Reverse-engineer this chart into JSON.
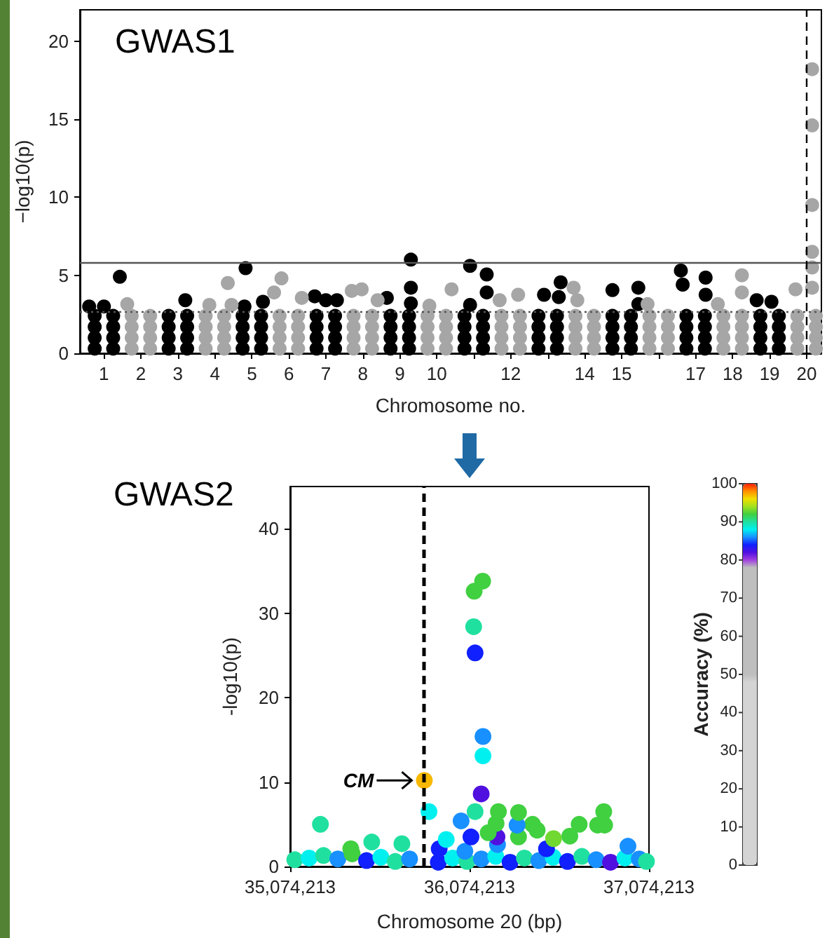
{
  "chart_data": [
    {
      "type": "scatter",
      "title": "GWAS1",
      "xlabel": "Chromosome no.",
      "ylabel": "−log10(p)",
      "marker": "circle",
      "xlim": [
        0.35,
        20.4
      ],
      "xticks": [
        1,
        2,
        3,
        4,
        5,
        6,
        7,
        8,
        9,
        10,
        {
          "value": 11,
          "label": null
        },
        12,
        {
          "value": 13,
          "label": null
        },
        14,
        15,
        {
          "value": 16,
          "label": null
        },
        17,
        18,
        19,
        20
      ],
      "ylim": [
        0,
        22
      ],
      "yticks": [
        0,
        5,
        10,
        15,
        20
      ],
      "ref_lines": [
        {
          "axis": "y",
          "value": 5.8,
          "color": "#555555",
          "line_style": "solid"
        },
        {
          "axis": "y",
          "value": 2.7,
          "color": "#555555",
          "line_style": "dotted"
        },
        {
          "axis": "x",
          "value": 20,
          "color": "#000000",
          "line_style": "dashed"
        }
      ],
      "series": [
        {
          "color": "#000000",
          "x": [
            0.75,
            0.75,
            0.75,
            0.75,
            1.25,
            1.25,
            1.25,
            1.25,
            2.75,
            2.75,
            2.75,
            2.75,
            3.25,
            3.25,
            3.25,
            3.25,
            4.75,
            4.75,
            4.75,
            4.75,
            5.25,
            5.25,
            5.25,
            5.25,
            6.75,
            6.75,
            6.75,
            6.75,
            7.25,
            7.25,
            7.25,
            7.25,
            8.75,
            8.75,
            8.75,
            8.75,
            9.25,
            9.25,
            9.25,
            9.25,
            10.75,
            10.75,
            10.75,
            10.75,
            11.25,
            11.25,
            11.25,
            11.25,
            12.75,
            12.75,
            12.75,
            12.75,
            13.25,
            13.25,
            13.25,
            13.25,
            14.75,
            14.75,
            14.75,
            14.75,
            15.25,
            15.25,
            15.25,
            15.25,
            16.75,
            16.75,
            16.75,
            16.75,
            17.25,
            17.25,
            17.25,
            17.25,
            18.75,
            18.75,
            18.75,
            18.75,
            19.25,
            19.25,
            19.25,
            19.25,
            1.43,
            1.0,
            0.6,
            3.2,
            4.83,
            4.8,
            5.3,
            6.7,
            7.0,
            7.3,
            8.65,
            9.3,
            9.3,
            9.3,
            10.9,
            11.35,
            11.35,
            10.9,
            13.35,
            12.9,
            13.3,
            14.75,
            15.45,
            15.45,
            16.6,
            17.27,
            17.27,
            16.65,
            18.65,
            19.05
          ],
          "values": [
            0.3,
            1,
            1.7,
            2.4,
            0.3,
            1,
            1.7,
            2.4,
            0.3,
            1,
            1.7,
            2.4,
            0.3,
            1,
            1.7,
            2.4,
            0.3,
            1,
            1.7,
            2.4,
            0.3,
            1,
            1.7,
            2.4,
            0.3,
            1,
            1.7,
            2.4,
            0.3,
            1,
            1.7,
            2.4,
            0.3,
            1,
            1.7,
            2.4,
            0.3,
            1,
            1.7,
            2.4,
            0.3,
            1,
            1.7,
            2.4,
            0.3,
            1,
            1.7,
            2.4,
            0.3,
            1,
            1.7,
            2.4,
            0.3,
            1,
            1.7,
            2.4,
            0.3,
            1,
            1.7,
            2.4,
            0.3,
            1,
            1.7,
            2.4,
            0.3,
            1,
            1.7,
            2.4,
            0.3,
            1,
            1.7,
            2.4,
            0.3,
            1,
            1.7,
            2.4,
            0.3,
            1,
            1.7,
            2.4,
            4.9,
            3.0,
            3.0,
            3.4,
            5.45,
            3.0,
            3.3,
            3.65,
            3.4,
            3.4,
            3.55,
            6.0,
            4.2,
            3.2,
            5.6,
            5.05,
            3.9,
            3.1,
            4.55,
            3.75,
            3.6,
            4.05,
            4.2,
            3.15,
            5.3,
            4.85,
            3.75,
            4.4,
            3.4,
            3.3
          ]
        },
        {
          "color": "#a6a6a6",
          "x": [
            1.75,
            1.75,
            1.75,
            1.75,
            2.25,
            2.25,
            2.25,
            2.25,
            3.75,
            3.75,
            3.75,
            3.75,
            4.25,
            4.25,
            4.25,
            4.25,
            5.75,
            5.75,
            5.75,
            5.75,
            6.25,
            6.25,
            6.25,
            6.25,
            7.75,
            7.75,
            7.75,
            7.75,
            8.25,
            8.25,
            8.25,
            8.25,
            9.75,
            9.75,
            9.75,
            9.75,
            10.25,
            10.25,
            10.25,
            10.25,
            11.75,
            11.75,
            11.75,
            11.75,
            12.25,
            12.25,
            12.25,
            12.25,
            13.75,
            13.75,
            13.75,
            13.75,
            14.25,
            14.25,
            14.25,
            14.25,
            15.75,
            15.75,
            15.75,
            15.75,
            16.25,
            16.25,
            16.25,
            16.25,
            17.75,
            17.75,
            17.75,
            17.75,
            18.25,
            18.25,
            18.25,
            18.25,
            19.75,
            19.75,
            19.75,
            19.75,
            20.25,
            20.25,
            20.25,
            20.25,
            1.63,
            3.85,
            4.35,
            4.45,
            5.8,
            5.6,
            6.35,
            7.7,
            7.97,
            8.4,
            10.4,
            9.8,
            12.2,
            11.7,
            13.7,
            13.8,
            15.7,
            18.25,
            18.25,
            17.6,
            19.7,
            20.15,
            20.15,
            20.15,
            20.15,
            20.15,
            20.15
          ],
          "values": [
            0.3,
            1,
            1.7,
            2.4,
            0.3,
            1,
            1.7,
            2.4,
            0.3,
            1,
            1.7,
            2.4,
            0.3,
            1,
            1.7,
            2.4,
            0.3,
            1,
            1.7,
            2.4,
            0.3,
            1,
            1.7,
            2.4,
            0.3,
            1,
            1.7,
            2.4,
            0.3,
            1,
            1.7,
            2.4,
            0.3,
            1,
            1.7,
            2.4,
            0.3,
            1,
            1.7,
            2.4,
            0.3,
            1,
            1.7,
            2.4,
            0.3,
            1,
            1.7,
            2.4,
            0.3,
            1,
            1.7,
            2.4,
            0.3,
            1,
            1.7,
            2.4,
            0.3,
            1,
            1.7,
            2.4,
            0.3,
            1,
            1.7,
            2.4,
            0.3,
            1,
            1.7,
            2.4,
            0.3,
            1,
            1.7,
            2.4,
            0.3,
            1,
            1.7,
            2.4,
            0.3,
            1,
            1.7,
            2.4,
            3.15,
            3.1,
            4.5,
            3.1,
            4.8,
            3.9,
            3.55,
            4.0,
            4.1,
            3.4,
            4.1,
            3.05,
            3.75,
            3.4,
            4.2,
            3.4,
            3.15,
            5.0,
            3.9,
            3.15,
            4.1,
            18.2,
            14.6,
            9.5,
            6.5,
            5.5,
            4.2
          ]
        }
      ]
    },
    {
      "type": "scatter",
      "title": "GWAS2",
      "xlabel": "Chromosome 20 (bp)",
      "ylabel": "-log10(p)",
      "clabel": "Accuracy (%)",
      "marker": "circle",
      "xlim": [
        35074213,
        37074213
      ],
      "xticks": [
        {
          "value": 35074213,
          "label": "35,074,213"
        },
        {
          "value": 36074213,
          "label": "36,074,213"
        },
        {
          "value": 37074213,
          "label": "37,074,213"
        }
      ],
      "ylim": [
        0,
        45
      ],
      "yticks": [
        0,
        10,
        20,
        30,
        40
      ],
      "clim": [
        0,
        100
      ],
      "cticks": [
        0,
        10,
        20,
        30,
        40,
        50,
        60,
        70,
        80,
        90,
        100
      ],
      "ref_lines": [
        {
          "axis": "x",
          "value": 35822000,
          "color": "#000000",
          "line_style": "dashed"
        }
      ],
      "annotations": [
        {
          "text": "CM",
          "x": 35822000,
          "y": 10.2
        }
      ],
      "series": [
        {
          "x": [
            35100000,
            35180000,
            35260000,
            35340000,
            35420000,
            35500000,
            35580000,
            35660000,
            35740000,
            35900000,
            35980000,
            36060000,
            36140000,
            36220000,
            36300000,
            36380000,
            36460000,
            36540000,
            36620000,
            36700000,
            36780000,
            36860000,
            36940000,
            37020000,
            37060000,
            35412000,
            36503000,
            36957000,
            35905000,
            36048000,
            35529000,
            35697000,
            35944000,
            36082000,
            36230000,
            36227000,
            36178000,
            36222000,
            36542000,
            36633000,
            36685000,
            36425000,
            36451000,
            36788000,
            36822000,
            36827000,
            36347000,
            36339000,
            36347000,
            36235000,
            36105000,
            36027000,
            35243000,
            35848000,
            35822000,
            36139000,
            36149000,
            36149000,
            36105000,
            36097000,
            36100000,
            36147000
          ],
          "values": [
            0.8,
            1.0,
            1.3,
            0.9,
            1.5,
            0.7,
            1.1,
            0.6,
            0.9,
            0.5,
            1.0,
            0.6,
            0.9,
            1.2,
            0.5,
            1.0,
            0.7,
            1.1,
            0.6,
            1.2,
            0.8,
            0.5,
            1.0,
            0.9,
            0.6,
            2.1,
            2.1,
            2.4,
            2.1,
            1.8,
            2.9,
            2.7,
            3.2,
            3.5,
            2.6,
            3.5,
            4.0,
            5.1,
            3.3,
            3.6,
            5.0,
            5.0,
            4.3,
            4.9,
            6.5,
            4.9,
            3.5,
            4.9,
            6.4,
            6.5,
            6.5,
            5.4,
            5.0,
            6.5,
            10.2,
            8.6,
            15.4,
            13.1,
            25.3,
            28.4,
            32.6,
            33.8
          ],
          "cvalues": [
            90,
            88,
            90,
            86,
            92,
            84,
            88,
            90,
            86,
            84,
            88,
            90,
            86,
            88,
            84,
            90,
            86,
            88,
            84,
            90,
            86,
            82,
            88,
            86,
            90,
            92,
            84,
            86,
            84,
            86,
            90,
            90,
            88,
            84,
            86,
            82,
            92,
            92,
            93,
            92,
            92,
            92,
            92,
            92,
            92,
            92,
            92,
            86,
            92,
            92,
            90,
            86,
            90,
            88,
            97,
            82,
            86,
            88,
            84,
            90,
            92,
            92
          ]
        }
      ]
    }
  ]
}
